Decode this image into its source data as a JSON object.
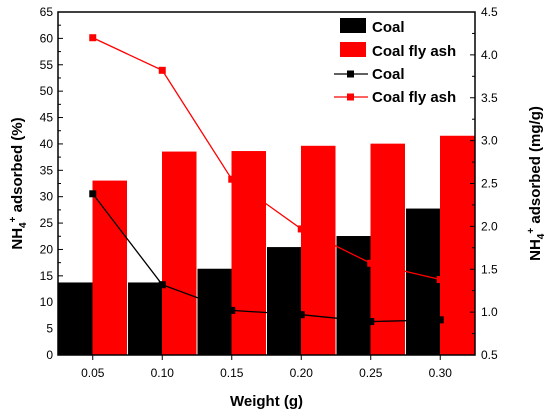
{
  "chart_data": {
    "type": "bar",
    "categories": [
      "0.05",
      "0.10",
      "0.15",
      "0.20",
      "0.25",
      "0.30"
    ],
    "xlabel": "Weight (g)",
    "ylabel_left": {
      "main": "NH",
      "sub": "4",
      "sup": "+",
      "rest": " adsorbed (%)"
    },
    "ylabel_right": {
      "main": "NH",
      "sub": "4",
      "sup": "+",
      "rest": " adsorbed (mg/g)"
    },
    "ylim_left": [
      0,
      65
    ],
    "yticks_left": [
      "0",
      "5",
      "10",
      "15",
      "20",
      "25",
      "30",
      "35",
      "40",
      "45",
      "50",
      "55",
      "60",
      "65"
    ],
    "ylim_right": [
      0.5,
      4.5
    ],
    "yticks_right": [
      "0.5",
      "1.0",
      "1.5",
      "2.0",
      "2.5",
      "3.0",
      "3.5",
      "4.0",
      "4.5"
    ],
    "bar_series": [
      {
        "name": "Coal",
        "color": "#000000",
        "axis": "left",
        "values": [
          13.7,
          13.7,
          16.3,
          20.4,
          22.5,
          27.7
        ]
      },
      {
        "name": "Coal fly ash",
        "color": "#ff0000",
        "axis": "left",
        "values": [
          33.0,
          38.5,
          38.6,
          39.6,
          40.0,
          41.5
        ]
      }
    ],
    "line_series": [
      {
        "name": "Coal",
        "color": "#000000",
        "axis": "right",
        "marker": "square",
        "values": [
          2.38,
          1.32,
          1.02,
          0.97,
          0.89,
          0.91
        ]
      },
      {
        "name": "Coal fly ash",
        "color": "#ff0000",
        "axis": "right",
        "marker": "square",
        "values": [
          4.2,
          3.82,
          2.55,
          1.97,
          1.57,
          1.38
        ]
      }
    ],
    "legend_position": "top-right",
    "grid": false
  }
}
